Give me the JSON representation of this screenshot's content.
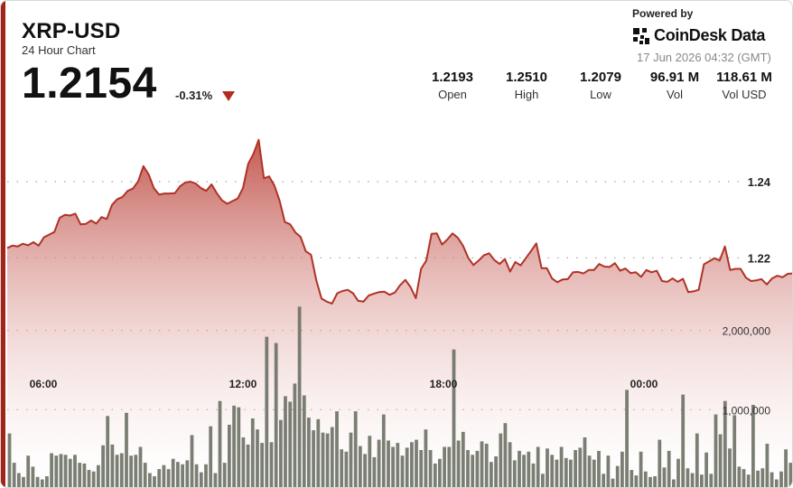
{
  "header": {
    "title": "XRP-USD",
    "subtitle": "24 Hour Chart",
    "price": "1.2154",
    "change": "-0.31%",
    "change_icon": "down-triangle-icon"
  },
  "branding": {
    "powered_by": "Powered by",
    "brand": "CoinDesk Data",
    "logo_icon": "coindesk-logo-icon",
    "timestamp": "17 Jun 2026 04:32 (GMT)"
  },
  "stats": [
    {
      "value": "1.2193",
      "label": "Open"
    },
    {
      "value": "1.2510",
      "label": "High"
    },
    {
      "value": "1.2079",
      "label": "Low"
    },
    {
      "value": "96.91 M",
      "label": "Vol"
    },
    {
      "value": "118.61 M",
      "label": "Vol USD"
    }
  ],
  "colors": {
    "accent": "#a3241b",
    "price_line": "#b03227",
    "area_top": "#c1524a",
    "volume_bar": "#6b7064",
    "grid": "#888888"
  },
  "chart_data": {
    "type": "area",
    "price_series": {
      "x_ticks": [
        "06:00",
        "12:00",
        "18:00",
        "00:00"
      ],
      "y_ticks": [
        "1.24",
        "1.22"
      ],
      "y_tick_values": [
        1.24,
        1.22
      ],
      "ylim": [
        1.198,
        1.259
      ],
      "values": [
        1.2226,
        1.2232,
        1.223,
        1.2237,
        1.2233,
        1.2241,
        1.2232,
        1.2254,
        1.2261,
        1.2268,
        1.2305,
        1.2313,
        1.2311,
        1.2316,
        1.2288,
        1.2289,
        1.2298,
        1.229,
        1.2307,
        1.2302,
        1.2339,
        1.2354,
        1.236,
        1.2376,
        1.2382,
        1.2401,
        1.2441,
        1.2419,
        1.2383,
        1.2366,
        1.2369,
        1.2369,
        1.237,
        1.2388,
        1.2398,
        1.24,
        1.2395,
        1.2383,
        1.2376,
        1.2393,
        1.237,
        1.2351,
        1.2342,
        1.2349,
        1.2356,
        1.2383,
        1.2447,
        1.2473,
        1.251,
        1.2409,
        1.2414,
        1.239,
        1.235,
        1.2294,
        1.2288,
        1.2267,
        1.2255,
        1.2217,
        1.2208,
        1.2141,
        1.2093,
        1.2085,
        1.208,
        1.2107,
        1.2113,
        1.2116,
        1.2107,
        1.2087,
        1.2085,
        1.2101,
        1.2106,
        1.211,
        1.2111,
        1.2103,
        1.2109,
        1.2128,
        1.2142,
        1.2123,
        1.2094,
        1.2171,
        1.2193,
        1.2263,
        1.2264,
        1.2235,
        1.2248,
        1.2264,
        1.2253,
        1.2232,
        1.22,
        1.2181,
        1.2193,
        1.2207,
        1.2212,
        1.2194,
        1.2184,
        1.2197,
        1.2164,
        1.2189,
        1.218,
        1.2199,
        1.2218,
        1.2238,
        1.2173,
        1.2173,
        1.2146,
        1.2136,
        1.2143,
        1.2144,
        1.2162,
        1.2163,
        1.2159,
        1.2168,
        1.2168,
        1.2184,
        1.2177,
        1.2176,
        1.2186,
        1.2166,
        1.2172,
        1.216,
        1.2162,
        1.215,
        1.2168,
        1.2162,
        1.2166,
        1.2139,
        1.2137,
        1.2146,
        1.2137,
        1.2145,
        1.211,
        1.2112,
        1.2116,
        1.2183,
        1.2191,
        1.2199,
        1.2193,
        1.223,
        1.2168,
        1.2171,
        1.2171,
        1.2148,
        1.2139,
        1.2141,
        1.2144,
        1.213,
        1.2146,
        1.2153,
        1.2149,
        1.2158,
        1.2159
      ]
    },
    "volume_series": {
      "y_ticks": [
        "2,000,000",
        "1,000,000"
      ],
      "y_tick_values": [
        2000000,
        1000000
      ],
      "ylim": [
        0,
        2600000
      ],
      "values": [
        700000,
        330000,
        200000,
        150000,
        420000,
        280000,
        150000,
        120000,
        160000,
        450000,
        420000,
        440000,
        430000,
        380000,
        430000,
        330000,
        320000,
        240000,
        220000,
        300000,
        550000,
        920000,
        560000,
        430000,
        450000,
        960000,
        420000,
        430000,
        530000,
        330000,
        200000,
        160000,
        250000,
        300000,
        250000,
        380000,
        340000,
        310000,
        360000,
        680000,
        310000,
        210000,
        310000,
        790000,
        200000,
        1110000,
        330000,
        810000,
        1050000,
        1030000,
        650000,
        560000,
        890000,
        750000,
        580000,
        1920000,
        590000,
        1840000,
        870000,
        1170000,
        1100000,
        1330000,
        2300000,
        1180000,
        900000,
        740000,
        880000,
        710000,
        700000,
        780000,
        980000,
        500000,
        470000,
        710000,
        980000,
        540000,
        440000,
        670000,
        400000,
        620000,
        940000,
        610000,
        530000,
        580000,
        420000,
        520000,
        590000,
        620000,
        490000,
        750000,
        490000,
        320000,
        380000,
        530000,
        530000,
        1760000,
        610000,
        720000,
        490000,
        430000,
        480000,
        600000,
        570000,
        340000,
        410000,
        700000,
        830000,
        590000,
        360000,
        480000,
        430000,
        470000,
        320000,
        530000,
        190000,
        510000,
        430000,
        370000,
        530000,
        390000,
        370000,
        490000,
        520000,
        650000,
        420000,
        370000,
        480000,
        190000,
        420000,
        130000,
        290000,
        470000,
        1250000,
        240000,
        170000,
        470000,
        220000,
        150000,
        160000,
        620000,
        270000,
        480000,
        120000,
        380000,
        1190000,
        260000,
        200000,
        700000,
        180000,
        460000,
        190000,
        940000,
        690000,
        1110000,
        510000,
        930000,
        280000,
        250000,
        180000,
        1060000,
        230000,
        260000,
        570000,
        210000,
        120000,
        220000,
        500000,
        330000
      ]
    }
  }
}
